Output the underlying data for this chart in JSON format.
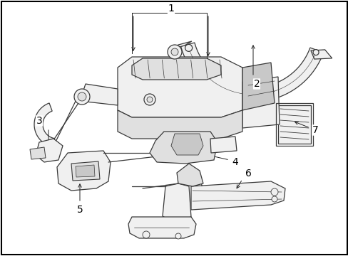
{
  "figsize": [
    4.89,
    3.6
  ],
  "dpi": 100,
  "bg": "#ffffff",
  "lc": "#3a3a3a",
  "lw": 0.9,
  "fill_light": "#f0f0f0",
  "fill_mid": "#e0e0e0",
  "fill_dark": "#c8c8c8"
}
